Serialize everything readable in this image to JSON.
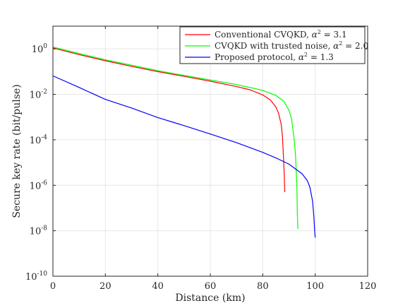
{
  "chart_data": {
    "type": "line",
    "title": "",
    "xlabel": "Distance (km)",
    "ylabel": "Secure key rate (bit/pulse)",
    "xlim": [
      0,
      120
    ],
    "ylim": [
      1e-10,
      10
    ],
    "yscale": "log",
    "grid": true,
    "legend_position": "top-right",
    "x_ticks": [
      0,
      20,
      40,
      60,
      80,
      100,
      120
    ],
    "x_tick_labels": [
      "0",
      "20",
      "40",
      "60",
      "80",
      "100",
      "120"
    ],
    "y_ticks": [
      1e-10,
      1e-08,
      1e-06,
      0.0001,
      0.01,
      1
    ],
    "y_tick_labels": [
      {
        "base": "10",
        "exp": "-10"
      },
      {
        "base": "10",
        "exp": "-8"
      },
      {
        "base": "10",
        "exp": "-6"
      },
      {
        "base": "10",
        "exp": "-4"
      },
      {
        "base": "10",
        "exp": "-2"
      },
      {
        "base": "10",
        "exp": "0"
      }
    ],
    "series": [
      {
        "name": "Conventional CVQKD, α² = 3.1",
        "legend_parts": {
          "prefix": "Conventional CVQKD, ",
          "var": "α",
          "sup": "2",
          "suffix": " = 3.1"
        },
        "color": "#ff0000",
        "x": [
          0,
          10,
          20,
          30,
          40,
          50,
          60,
          70,
          75,
          80,
          83,
          85,
          86,
          87,
          87.5,
          88,
          88.2,
          88.4
        ],
        "y": [
          1.1,
          0.56,
          0.3,
          0.17,
          0.1,
          0.062,
          0.038,
          0.022,
          0.016,
          0.0095,
          0.0055,
          0.0028,
          0.0015,
          0.0005,
          0.00015,
          1e-05,
          3e-06,
          5e-07
        ]
      },
      {
        "name": "CVQKD with trusted noise, α² = 2.0",
        "legend_parts": {
          "prefix": "CVQKD with trusted noise, ",
          "var": "α",
          "sup": "2",
          "suffix": " = 2.0"
        },
        "color": "#00ff00",
        "x": [
          0,
          10,
          20,
          30,
          40,
          50,
          60,
          70,
          80,
          85,
          88,
          90,
          91,
          92,
          92.5,
          93,
          93.2,
          93.4
        ],
        "y": [
          1.2,
          0.62,
          0.33,
          0.19,
          0.11,
          0.068,
          0.043,
          0.027,
          0.015,
          0.009,
          0.005,
          0.002,
          0.0008,
          0.0001,
          2e-05,
          1e-06,
          5e-08,
          1.2e-08
        ]
      },
      {
        "name": "Proposed protocol, α² = 1.3",
        "legend_parts": {
          "prefix": "Proposed protocol, ",
          "var": "α",
          "sup": "2",
          "suffix": " = 1.3"
        },
        "color": "#0000ff",
        "x": [
          0,
          10,
          20,
          30,
          40,
          50,
          60,
          70,
          80,
          85,
          90,
          95,
          97,
          98,
          99,
          99.5,
          99.8,
          100
        ],
        "y": [
          0.065,
          0.02,
          0.006,
          0.0025,
          0.00095,
          0.00042,
          0.00018,
          7.5e-05,
          2.8e-05,
          1.6e-05,
          8.5e-06,
          3.2e-06,
          1.6e-06,
          8e-07,
          2e-07,
          4e-08,
          1e-08,
          5e-09
        ]
      }
    ]
  }
}
